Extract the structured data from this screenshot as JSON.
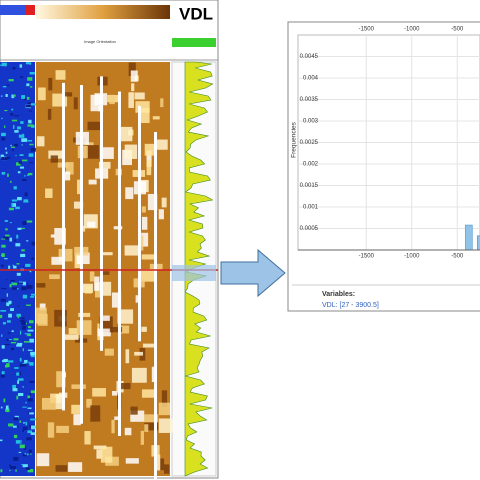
{
  "log_panel": {
    "title": "VDL",
    "header_label": "Image Orientation"
  },
  "chart_data": {
    "type": "histogram",
    "y_label": "Frequencies",
    "bins": [
      -410,
      -335,
      -280,
      -200
    ],
    "values": [
      0.00058,
      0,
      0.00033
    ],
    "color": "#8fc3e8",
    "xlim": [
      -2250,
      -250
    ],
    "xticks": [
      -1500,
      -1000,
      -500
    ],
    "ylim": [
      0,
      0.005
    ],
    "yticks": [
      0.0005,
      0.001,
      0.0015,
      0.002,
      0.0025,
      0.003,
      0.0035,
      0.004,
      0.0045
    ],
    "grid": true,
    "variables_heading": "Variables:",
    "variables_item": "VDL: [27 - 3900.5]"
  }
}
